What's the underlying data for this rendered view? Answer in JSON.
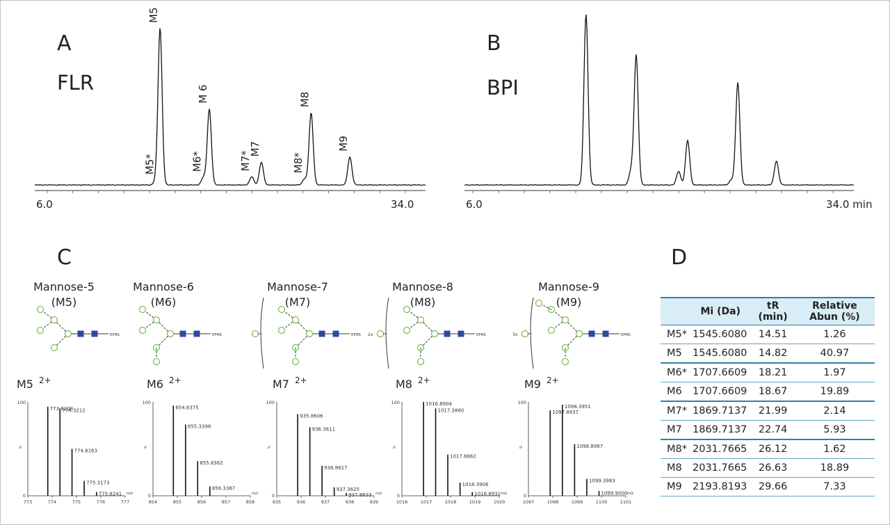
{
  "panel_a": {
    "letter": "A",
    "detector": "FLR",
    "x_start": "6.0",
    "x_end": "34.0",
    "peak_labels": [
      "M5*",
      "M5",
      "M6*",
      "M 6",
      "M7*",
      "M7",
      "M8*",
      "M8",
      "M9"
    ]
  },
  "panel_b": {
    "letter": "B",
    "detector": "BPI",
    "x_start": "6.0",
    "x_end": "34.0 min"
  },
  "panel_c": {
    "letter": "C",
    "structures": [
      {
        "name": "Mannose-5",
        "abbr": "(M5)",
        "tag": "RFMS"
      },
      {
        "name": "Mannose-6",
        "abbr": "(M6)",
        "tag": "RFMS"
      },
      {
        "name": "Mannose-7",
        "abbr": "(M7)",
        "tag": "RFMS"
      },
      {
        "name": "Mannose-8",
        "abbr": "(M8)",
        "tag": "RFMS",
        "mult": "2x"
      },
      {
        "name": "Mannose-9",
        "abbr": "(M9)",
        "tag": "RFMS",
        "mult": "3x"
      }
    ],
    "spectra_labels": [
      {
        "name": "M5",
        "charge": "2+"
      },
      {
        "name": "M6",
        "charge": "2+"
      },
      {
        "name": "M7",
        "charge": "2+"
      },
      {
        "name": "M8",
        "charge": "2+"
      },
      {
        "name": "M9",
        "charge": "2+"
      }
    ]
  },
  "panel_d": {
    "letter": "D",
    "headers": [
      "",
      "Mi (Da)",
      "tR (min)",
      "Relative Abun (%)"
    ],
    "rows": [
      [
        "M5*",
        "1545.6080",
        "14.51",
        "1.26"
      ],
      [
        "M5",
        "1545.6080",
        "14.82",
        "40.97"
      ],
      [
        "M6*",
        "1707.6609",
        "18.21",
        "1.97"
      ],
      [
        "M6",
        "1707.6609",
        "18.67",
        "19.89"
      ],
      [
        "M7*",
        "1869.7137",
        "21.99",
        "2.14"
      ],
      [
        "M7",
        "1869.7137",
        "22.74",
        "5.93"
      ],
      [
        "M8*",
        "2031.7665",
        "26.12",
        "1.62"
      ],
      [
        "M8",
        "2031.7665",
        "26.63",
        "18.89"
      ],
      [
        "M9",
        "2193.8193",
        "29.66",
        "7.33"
      ]
    ]
  },
  "chart_data": [
    {
      "type": "line",
      "title": "FLR",
      "xlim": [
        6.0,
        34.0
      ],
      "xlabel": "min",
      "series": [
        {
          "peaks": [
            {
              "label": "M5*",
              "x": 14.51,
              "y": 1.26
            },
            {
              "label": "M5",
              "x": 14.82,
              "y": 40.97
            },
            {
              "label": "M6*",
              "x": 18.21,
              "y": 1.97
            },
            {
              "label": "M 6",
              "x": 18.67,
              "y": 19.89
            },
            {
              "label": "M7*",
              "x": 21.99,
              "y": 2.14
            },
            {
              "label": "M7",
              "x": 22.74,
              "y": 5.93
            },
            {
              "label": "M8*",
              "x": 26.12,
              "y": 1.62
            },
            {
              "label": "M8",
              "x": 26.63,
              "y": 18.89
            },
            {
              "label": "M9",
              "x": 29.66,
              "y": 7.33
            }
          ]
        }
      ]
    },
    {
      "type": "line",
      "title": "BPI",
      "xlim": [
        6.0,
        34.0
      ],
      "xlabel": "min",
      "series": [
        {
          "peaks": [
            {
              "x": 14.8,
              "y": 100
            },
            {
              "x": 18.3,
              "y": 8
            },
            {
              "x": 18.7,
              "y": 76
            },
            {
              "x": 22.0,
              "y": 8
            },
            {
              "x": 22.7,
              "y": 26
            },
            {
              "x": 26.1,
              "y": 3
            },
            {
              "x": 26.6,
              "y": 60
            },
            {
              "x": 29.6,
              "y": 14
            }
          ]
        }
      ]
    },
    {
      "type": "bar",
      "title": "M5 2+",
      "xlim": [
        773,
        777
      ],
      "ylim": [
        0,
        100
      ],
      "x_ticks": [
        "773",
        "774",
        "775",
        "776",
        "777"
      ],
      "xunit": "m/z",
      "peaks": [
        {
          "x": 773.8208,
          "y": 95,
          "label": "773.8208"
        },
        {
          "x": 774.3212,
          "y": 93,
          "label": "774.3212"
        },
        {
          "x": 774.8163,
          "y": 50,
          "label": "774.8163"
        },
        {
          "x": 775.3173,
          "y": 16,
          "label": "775.3173"
        },
        {
          "x": 775.8241,
          "y": 4,
          "label": "775.8241"
        }
      ]
    },
    {
      "type": "bar",
      "title": "M6 2+",
      "xlim": [
        854,
        858
      ],
      "ylim": [
        0,
        100
      ],
      "x_ticks": [
        "854",
        "855",
        "856",
        "857",
        "858"
      ],
      "xunit": "m/z",
      "peaks": [
        {
          "x": 854.8375,
          "y": 96,
          "label": "854.8375"
        },
        {
          "x": 855.3398,
          "y": 76,
          "label": "855.3398"
        },
        {
          "x": 855.8362,
          "y": 37,
          "label": "855.8362"
        },
        {
          "x": 856.3387,
          "y": 10,
          "label": "856.3387"
        }
      ]
    },
    {
      "type": "bar",
      "title": "M7 2+",
      "xlim": [
        935,
        939
      ],
      "ylim": [
        0,
        100
      ],
      "x_ticks": [
        "935",
        "936",
        "937",
        "938",
        "939"
      ],
      "xunit": "m/z",
      "peaks": [
        {
          "x": 935.8606,
          "y": 87,
          "label": "935.8606"
        },
        {
          "x": 936.3611,
          "y": 73,
          "label": "936.3611"
        },
        {
          "x": 936.8617,
          "y": 32,
          "label": "936.8617"
        },
        {
          "x": 937.3625,
          "y": 9,
          "label": "937.3625"
        },
        {
          "x": 937.8633,
          "y": 3,
          "label": "937.8633"
        }
      ]
    },
    {
      "type": "bar",
      "title": "M8 2+",
      "xlim": [
        1016,
        1020
      ],
      "ylim": [
        0,
        100
      ],
      "x_ticks": [
        "1016",
        "1017",
        "1018",
        "1019",
        "1020"
      ],
      "xunit": "m/z",
      "peaks": [
        {
          "x": 1016.8904,
          "y": 100,
          "label": "1016.8904"
        },
        {
          "x": 1017.386,
          "y": 93,
          "label": "1017.3860"
        },
        {
          "x": 1017.8862,
          "y": 44,
          "label": "1017.8862"
        },
        {
          "x": 1018.3906,
          "y": 14,
          "label": "1018.3906"
        },
        {
          "x": 1018.8931,
          "y": 4,
          "label": "1018.8931"
        }
      ]
    },
    {
      "type": "bar",
      "title": "M9 2+",
      "xlim": [
        1097,
        1101
      ],
      "ylim": [
        0,
        100
      ],
      "x_ticks": [
        "1097",
        "1098",
        "1099",
        "1100",
        "1101"
      ],
      "xunit": "m/z",
      "peaks": [
        {
          "x": 1097.8937,
          "y": 91,
          "label": "1097.8937"
        },
        {
          "x": 1098.3951,
          "y": 97,
          "label": "1098.3951"
        },
        {
          "x": 1098.8967,
          "y": 55,
          "label": "1098.8967"
        },
        {
          "x": 1099.3983,
          "y": 18,
          "label": "1099.3983"
        },
        {
          "x": 1099.9,
          "y": 5,
          "label": "1099.9000"
        }
      ]
    }
  ]
}
